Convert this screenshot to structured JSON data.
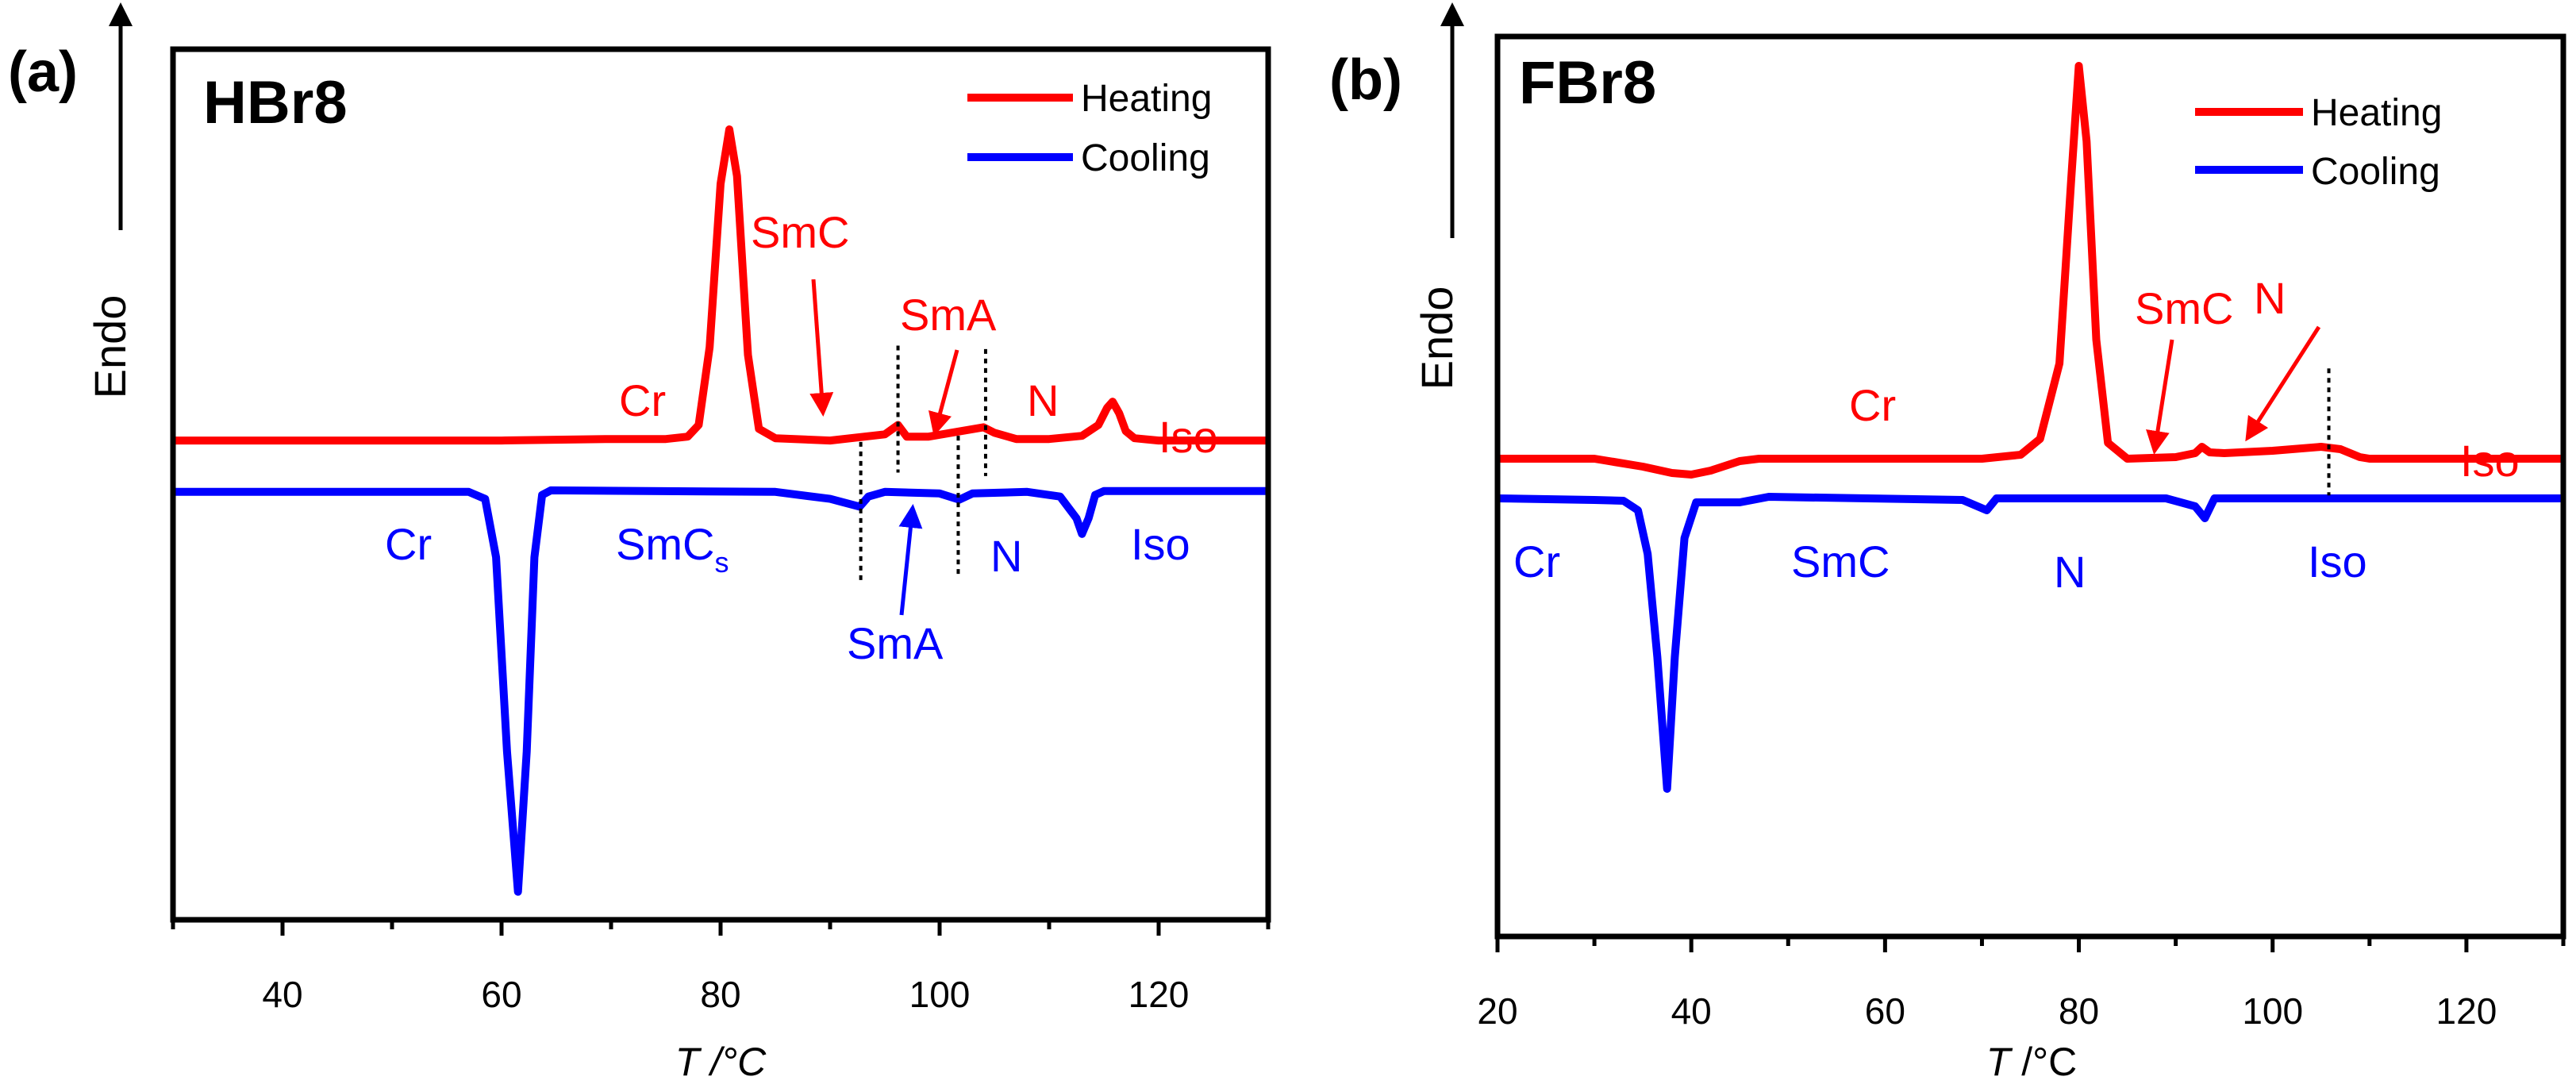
{
  "chart_data": [
    {
      "type": "line",
      "panel_label": "(a)",
      "title": "HBr8",
      "xlabel_italic": "T",
      "xlabel_unit": " /°C",
      "ylabel": "Endo",
      "xlim": [
        30,
        130
      ],
      "ylim": [
        -6.16,
        5.03
      ],
      "xticks": [
        40,
        60,
        80,
        100,
        120
      ],
      "xminor": [
        30,
        50,
        70,
        90,
        110,
        130
      ],
      "grid": false,
      "legend_placement": "top-right",
      "series": [
        {
          "name": "Heating",
          "color": "#ff0000",
          "x": [
            30,
            60,
            70,
            75,
            77,
            78,
            79,
            80,
            80.8,
            81.5,
            82.5,
            83.5,
            85,
            90,
            95,
            96.2,
            97,
            99,
            104,
            105,
            107,
            110,
            113,
            114.5,
            115.3,
            115.8,
            116.4,
            117,
            117.8,
            120,
            130
          ],
          "y": [
            0,
            0,
            0.02,
            0.02,
            0.05,
            0.2,
            1.2,
            3.3,
            4.0,
            3.4,
            1.1,
            0.15,
            0.03,
            0.0,
            0.08,
            0.2,
            0.05,
            0.05,
            0.17,
            0.1,
            0.02,
            0.02,
            0.06,
            0.2,
            0.42,
            0.5,
            0.35,
            0.12,
            0.03,
            0.0,
            0.0
          ]
        },
        {
          "name": "Cooling",
          "color": "#0000ff",
          "x": [
            30,
            57,
            58.5,
            59.5,
            60.5,
            61.5,
            62.3,
            63,
            63.7,
            64.5,
            85,
            90,
            92.7,
            93.5,
            95,
            100,
            101.8,
            103,
            108,
            111,
            112.5,
            113,
            113.6,
            114.2,
            115,
            130
          ],
          "y": [
            -0.66,
            -0.66,
            -0.75,
            -1.5,
            -4.0,
            -5.8,
            -4.0,
            -1.5,
            -0.7,
            -0.64,
            -0.66,
            -0.75,
            -0.85,
            -0.72,
            -0.66,
            -0.68,
            -0.76,
            -0.68,
            -0.66,
            -0.72,
            -1.0,
            -1.2,
            -1.0,
            -0.7,
            -0.65,
            -0.65
          ]
        }
      ],
      "transition_markers": {
        "heating": [
          96.2,
          104.2
        ],
        "cooling": [
          92.8,
          101.7
        ]
      },
      "annotations": {
        "heating": {
          "cr": "Cr",
          "smc": "SmC",
          "sma": "SmA",
          "n": "N",
          "iso": "Iso"
        },
        "cooling": {
          "cr": "Cr",
          "smcs": "SmC",
          "smcs_sub": "s",
          "sma": "SmA",
          "n": "N",
          "iso": "Iso"
        }
      }
    },
    {
      "type": "line",
      "panel_label": "(b)",
      "title": "FBr8",
      "xlabel_italic": "T",
      "xlabel_unit": " /°C",
      "ylabel": "Endo",
      "xlim": [
        20,
        130
      ],
      "ylim": [
        -6.02,
        5.32
      ],
      "xticks": [
        20,
        40,
        60,
        80,
        100,
        120
      ],
      "xminor": [
        30,
        50,
        70,
        90,
        110,
        130
      ],
      "grid": false,
      "legend_placement": "top-right",
      "series": [
        {
          "name": "Heating",
          "color": "#ff0000",
          "x": [
            20,
            30,
            31,
            35,
            38,
            40,
            42,
            45,
            47,
            70,
            74,
            76,
            78,
            79.2,
            80,
            80.8,
            81.8,
            83,
            85,
            90,
            92,
            92.7,
            93.5,
            95,
            100,
            105,
            107,
            109,
            110,
            130
          ],
          "y": [
            0,
            0,
            -0.02,
            -0.1,
            -0.18,
            -0.2,
            -0.15,
            -0.03,
            0,
            0,
            0.05,
            0.25,
            1.2,
            3.5,
            4.95,
            4.0,
            1.5,
            0.2,
            0.0,
            0.02,
            0.07,
            0.15,
            0.08,
            0.07,
            0.1,
            0.15,
            0.12,
            0.02,
            0,
            0
          ]
        },
        {
          "name": "Cooling",
          "color": "#0000ff",
          "x": [
            20,
            30,
            33,
            34.5,
            35.5,
            36.5,
            37.5,
            38.3,
            39.3,
            40.5,
            45,
            48,
            68,
            70.5,
            71.5,
            89,
            92,
            93,
            94,
            130
          ],
          "y": [
            -0.5,
            -0.52,
            -0.53,
            -0.65,
            -1.2,
            -2.5,
            -4.16,
            -2.5,
            -1.0,
            -0.55,
            -0.55,
            -0.48,
            -0.52,
            -0.65,
            -0.5,
            -0.5,
            -0.6,
            -0.75,
            -0.5,
            -0.5
          ]
        }
      ],
      "transition_markers": {
        "heating": [
          105.8
        ],
        "cooling": []
      },
      "annotations": {
        "heating": {
          "cr": "Cr",
          "smc": "SmC",
          "n": "N",
          "iso": "Iso"
        },
        "cooling": {
          "cr": "Cr",
          "smc": "SmC",
          "n": "N",
          "iso": "Iso"
        }
      }
    }
  ]
}
